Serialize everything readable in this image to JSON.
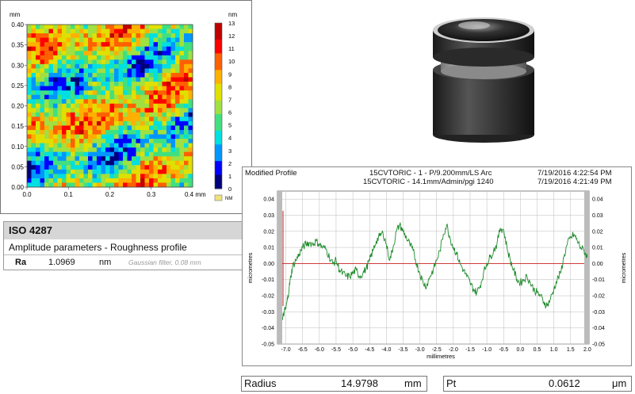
{
  "roughness_map": {
    "y_unit": "mm",
    "x_unit": "0.4 mm",
    "colorbar_unit": "nm",
    "colorbar_ticks": [
      "13",
      "12",
      "11",
      "10",
      "9",
      "8",
      "7",
      "6",
      "5",
      "4",
      "3",
      "2",
      "1",
      "0"
    ],
    "nm_label": "NM",
    "x_ticks": [
      "0.0",
      "0.1",
      "0.2",
      "0.3"
    ],
    "y_ticks": [
      "0.40",
      "0.35",
      "0.30",
      "0.25",
      "0.20",
      "0.15",
      "0.10",
      "0.05",
      "0.00"
    ]
  },
  "iso": {
    "title": "ISO 4287",
    "subtitle": "Amplitude parameters - Roughness profile",
    "param": "Ra",
    "value": "1.0969",
    "unit": "nm",
    "filter": "Gaussian filter, 0.08 mm"
  },
  "profile": {
    "header_left": "Modified Profile",
    "header_mid_1": "15CVTORIC - 1 - P/9.200mm/LS Arc",
    "header_mid_2": "15CVTORIC - 14.1mm/Admin/pgi 1240",
    "header_right_1": "7/19/2016 4:22:54 PM",
    "header_right_2": "7/19/2016 4:21:49 PM"
  },
  "bottom": {
    "radius_label": "Radius",
    "radius_value": "14.9798",
    "radius_unit": "mm",
    "pt_label": "Pt",
    "pt_value": "0.0612",
    "pt_unit": "μm"
  },
  "colors": {
    "trace": "#1e8a2a",
    "zero_line": "#cc2222",
    "colormap": [
      "#00007a",
      "#0000ff",
      "#0096ff",
      "#00e0e0",
      "#40e080",
      "#a0e040",
      "#e0e000",
      "#ffb000",
      "#ff6000",
      "#ff0000",
      "#c00000"
    ]
  },
  "chart_data": {
    "type": "line",
    "xlabel": "millimetres",
    "ylabel": "micrometres",
    "xlim": [
      -7.25,
      2.05
    ],
    "ylim": [
      -0.05,
      0.045
    ],
    "x_ticks": [
      -7.0,
      -6.5,
      -6.0,
      -5.5,
      -5.0,
      -4.5,
      -4.0,
      -3.5,
      -3.0,
      -2.5,
      -2.0,
      -1.5,
      -1.0,
      -0.5,
      0.0,
      0.5,
      1.0,
      1.5,
      2.0
    ],
    "x_tick_labels": [
      "-7.0",
      "-6.5",
      "-6.0",
      "-5.5",
      "-5.0",
      "-4.5",
      "-4.0",
      "-3.5",
      "-3.0",
      "-2.5",
      "-2.0",
      "-1.5",
      "-1.0",
      "-0.5",
      "0.0",
      "0.5",
      "1.0",
      "1.5",
      "2.0"
    ],
    "y_ticks": [
      0.04,
      0.03,
      0.02,
      0.01,
      0.0,
      -0.01,
      -0.02,
      -0.03,
      -0.04,
      -0.05
    ],
    "y_tick_labels": [
      "0.04",
      "0.03",
      "0.02",
      "0.01",
      "0.00",
      "-0.01",
      "-0.02",
      "-0.03",
      "-0.04",
      "-0.05"
    ],
    "series": [
      {
        "x": [
          -7.1,
          -7.05,
          -7.0,
          -6.95,
          -6.9,
          -6.85,
          -6.8,
          -6.7,
          -6.6,
          -6.5,
          -6.4,
          -6.3,
          -6.2,
          -6.1,
          -6.0,
          -5.9,
          -5.8,
          -5.7,
          -5.6,
          -5.5,
          -5.4,
          -5.3,
          -5.2,
          -5.1,
          -5.0,
          -4.9,
          -4.8,
          -4.7,
          -4.6,
          -4.5,
          -4.4,
          -4.3,
          -4.2,
          -4.1,
          -4.0,
          -3.9,
          -3.8,
          -3.7,
          -3.6,
          -3.5,
          -3.4,
          -3.3,
          -3.2,
          -3.1,
          -3.0,
          -2.9,
          -2.8,
          -2.7,
          -2.6,
          -2.5,
          -2.4,
          -2.3,
          -2.2,
          -2.1,
          -2.0,
          -1.9,
          -1.8,
          -1.7,
          -1.6,
          -1.5,
          -1.4,
          -1.3,
          -1.2,
          -1.1,
          -1.0,
          -0.9,
          -0.8,
          -0.7,
          -0.6,
          -0.5,
          -0.4,
          -0.3,
          -0.2,
          -0.1,
          0.0,
          0.1,
          0.2,
          0.3,
          0.4,
          0.5,
          0.6,
          0.7,
          0.8,
          0.9,
          1.0,
          1.1,
          1.2,
          1.3,
          1.4,
          1.5,
          1.6,
          1.7,
          1.8,
          1.9,
          2.0
        ],
        "y": [
          -0.035,
          -0.03,
          -0.028,
          -0.022,
          -0.015,
          -0.008,
          -0.002,
          0.002,
          0.006,
          0.01,
          0.012,
          0.013,
          0.012,
          0.014,
          0.012,
          0.01,
          0.009,
          0.004,
          0.0,
          0.002,
          -0.004,
          -0.006,
          -0.008,
          -0.008,
          -0.006,
          -0.004,
          -0.008,
          -0.006,
          -0.003,
          0.002,
          0.008,
          0.014,
          0.017,
          0.019,
          0.012,
          0.002,
          0.01,
          0.02,
          0.024,
          0.02,
          0.016,
          0.012,
          0.008,
          0.0,
          -0.006,
          -0.012,
          -0.014,
          -0.008,
          -0.004,
          0.002,
          0.008,
          0.018,
          0.024,
          0.016,
          0.01,
          0.006,
          0.0,
          -0.004,
          -0.008,
          -0.012,
          -0.016,
          -0.018,
          -0.014,
          -0.006,
          0.0,
          0.004,
          0.008,
          0.012,
          0.022,
          0.021,
          0.01,
          0.002,
          -0.004,
          -0.01,
          -0.012,
          -0.01,
          -0.008,
          -0.012,
          -0.016,
          -0.018,
          -0.02,
          -0.024,
          -0.026,
          -0.022,
          -0.016,
          -0.01,
          -0.006,
          0.004,
          0.012,
          0.016,
          0.018,
          0.014,
          0.01,
          0.008,
          0.004
        ]
      }
    ]
  }
}
